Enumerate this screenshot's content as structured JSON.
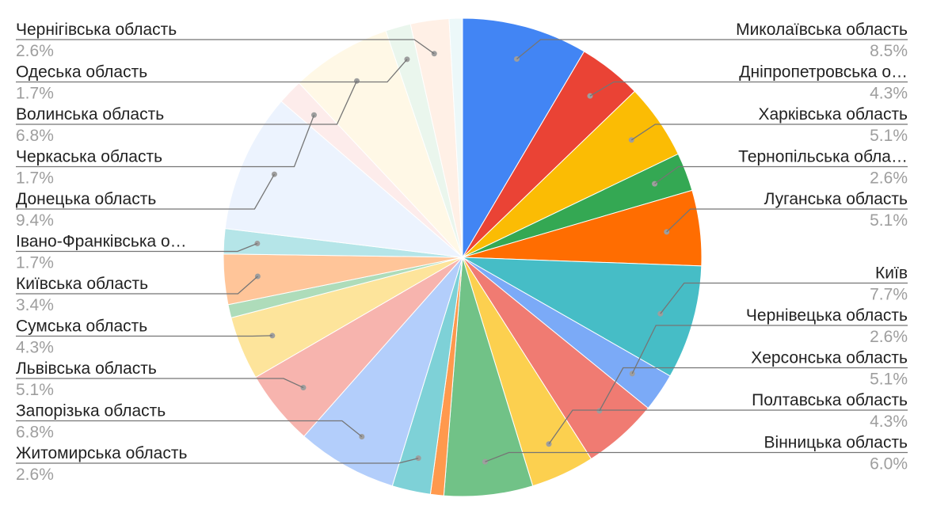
{
  "chart_data": {
    "type": "pie",
    "start_angle_deg": 0,
    "direction": "clockwise",
    "slices": [
      {
        "label": "Миколаївська область",
        "pct_label": "8.5%",
        "value": 8.5,
        "color": "#4285f4",
        "side": "right"
      },
      {
        "label": "Дніпропетровська о…",
        "pct_label": "4.3%",
        "value": 4.3,
        "color": "#ea4335",
        "side": "right"
      },
      {
        "label": "Харківська область",
        "pct_label": "5.1%",
        "value": 5.1,
        "color": "#fbbc04",
        "side": "right"
      },
      {
        "label": "Тернопільська обла…",
        "pct_label": "2.6%",
        "value": 2.6,
        "color": "#34a853",
        "side": "right"
      },
      {
        "label": "Луганська область",
        "pct_label": "5.1%",
        "value": 5.1,
        "color": "#ff6d01",
        "side": "right"
      },
      {
        "label": "Київ",
        "pct_label": "7.7%",
        "value": 7.7,
        "color": "#46bdc6",
        "side": "right"
      },
      {
        "label": "Чернівецька область",
        "pct_label": "2.6%",
        "value": 2.6,
        "color": "#7baaf7",
        "side": "right"
      },
      {
        "label": "Херсонська область",
        "pct_label": "5.1%",
        "value": 5.1,
        "color": "#f07b72",
        "side": "right"
      },
      {
        "label": "Полтавська область",
        "pct_label": "4.3%",
        "value": 4.3,
        "color": "#fcd04f",
        "side": "right"
      },
      {
        "label": "Вінницька область",
        "pct_label": "6.0%",
        "value": 6.0,
        "color": "#71c287",
        "side": "right"
      },
      {
        "label": "",
        "pct_label": "",
        "value": 0.9,
        "color": "#ff994d",
        "side": "none"
      },
      {
        "label": "Житомирська область",
        "pct_label": "2.6%",
        "value": 2.6,
        "color": "#7ed1d7",
        "side": "left"
      },
      {
        "label": "Запорізька область",
        "pct_label": "6.8%",
        "value": 6.8,
        "color": "#b3cefb",
        "side": "left"
      },
      {
        "label": "Львівська область",
        "pct_label": "5.1%",
        "value": 5.1,
        "color": "#f7b4ae",
        "side": "left"
      },
      {
        "label": "Сумська область",
        "pct_label": "4.3%",
        "value": 4.3,
        "color": "#fde49b",
        "side": "left"
      },
      {
        "label": "",
        "pct_label": "",
        "value": 0.9,
        "color": "#aedcba",
        "side": "none"
      },
      {
        "label": "Київська область",
        "pct_label": "3.4%",
        "value": 3.4,
        "color": "#ffc599",
        "side": "left"
      },
      {
        "label": "Івано-Франківська о…",
        "pct_label": "1.7%",
        "value": 1.7,
        "color": "#b5e5e8",
        "side": "left"
      },
      {
        "label": "Донецька область",
        "pct_label": "9.4%",
        "value": 9.4,
        "color": "#ecf3fe",
        "side": "left"
      },
      {
        "label": "Черкаська область",
        "pct_label": "1.7%",
        "value": 1.7,
        "color": "#fdeceb",
        "side": "left"
      },
      {
        "label": "Волинська область",
        "pct_label": "6.8%",
        "value": 6.8,
        "color": "#fff8e6",
        "side": "left"
      },
      {
        "label": "Одеська область",
        "pct_label": "1.7%",
        "value": 1.7,
        "color": "#eaf6ed",
        "side": "left"
      },
      {
        "label": "Чернігівська область",
        "pct_label": "2.6%",
        "value": 2.6,
        "color": "#fff0e6",
        "side": "left"
      },
      {
        "label": "",
        "pct_label": "",
        "value": 0.9,
        "color": "#ecf8f9",
        "side": "none"
      }
    ]
  }
}
